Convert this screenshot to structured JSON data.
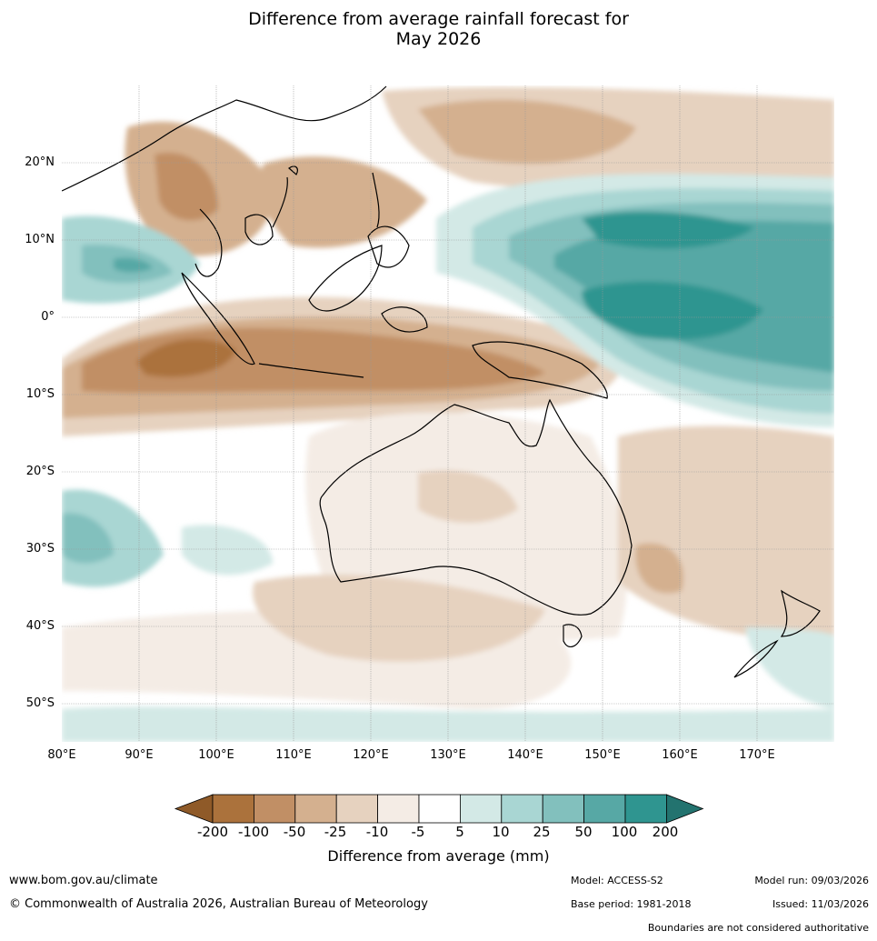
{
  "title": {
    "line1": "Difference from average rainfall forecast for",
    "line2": "May 2026"
  },
  "map": {
    "latitude_labels": [
      "20°N",
      "10°N",
      "0°",
      "10°S",
      "20°S",
      "30°S",
      "40°S",
      "50°S"
    ],
    "longitude_labels": [
      "80°E",
      "90°E",
      "100°E",
      "110°E",
      "120°E",
      "130°E",
      "140°E",
      "150°E",
      "160°E",
      "170°E"
    ]
  },
  "colorbar": {
    "tick_labels": [
      "-200",
      "-100",
      "-50",
      "-25",
      "-10",
      "-5",
      "5",
      "10",
      "25",
      "50",
      "100",
      "200"
    ],
    "title": "Difference from average (mm)",
    "colors": [
      "#8f5a28",
      "#ab723c",
      "#c18f65",
      "#d4b08f",
      "#e6d2bf",
      "#f4ece5",
      "#ffffff",
      "#d3e9e6",
      "#a9d6d3",
      "#82c0bd",
      "#57a8a5",
      "#2f9590",
      "#23736f"
    ]
  },
  "footer": {
    "website": "www.bom.gov.au/climate",
    "copyright": "© Commonwealth of Australia 2026, Australian Bureau of Meteorology",
    "model": "Model: ACCESS-S2",
    "base_period": "Base period: 1981-2018",
    "model_run": "Model run: 09/03/2026",
    "issued": "Issued: 11/03/2026",
    "disclaimer": "Boundaries are not considered authoritative"
  }
}
